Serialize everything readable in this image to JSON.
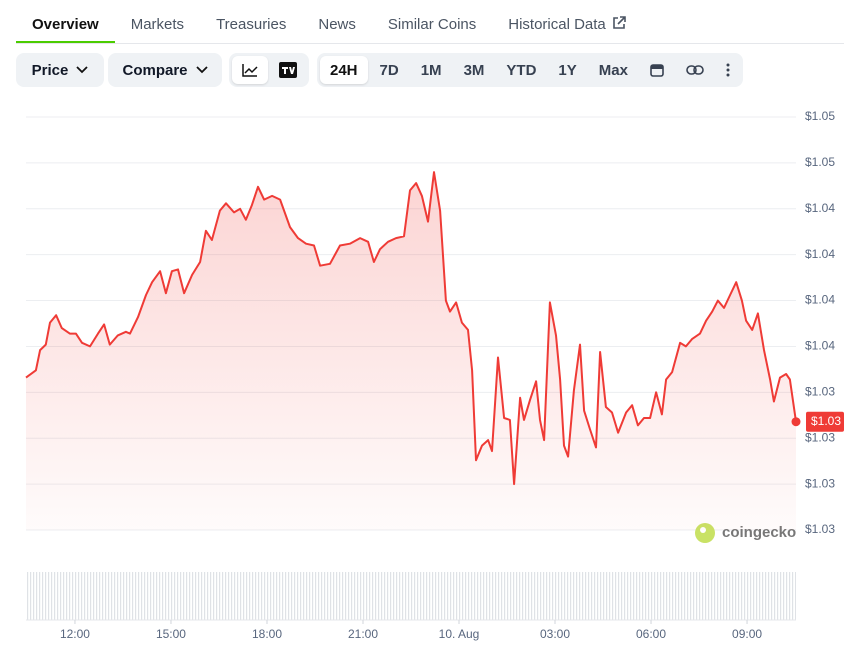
{
  "tabs": [
    "Overview",
    "Markets",
    "Treasuries",
    "News",
    "Similar Coins",
    "Historical Data"
  ],
  "toolbar": {
    "dropdowns": [
      "Price",
      "Compare"
    ],
    "ranges": [
      "24H",
      "7D",
      "1M",
      "3M",
      "YTD",
      "1Y",
      "Max"
    ]
  },
  "watermark": "coingecko",
  "chart_data": {
    "type": "line",
    "color": "#ef3b36",
    "grid": true,
    "x": [
      10.47,
      10.78,
      10.91,
      11.09,
      11.22,
      11.41,
      11.59,
      11.84,
      12.03,
      12.22,
      12.47,
      12.72,
      12.91,
      13.09,
      13.34,
      13.59,
      13.72,
      13.97,
      14.22,
      14.41,
      14.66,
      14.84,
      15.03,
      15.22,
      15.41,
      15.66,
      15.91,
      16.09,
      16.28,
      16.53,
      16.72,
      16.97,
      17.16,
      17.34,
      17.53,
      17.72,
      17.91,
      18.16,
      18.41,
      18.72,
      18.97,
      19.22,
      19.47,
      19.66,
      19.97,
      20.28,
      20.59,
      20.91,
      21.16,
      21.34,
      21.53,
      21.78,
      22.03,
      22.28,
      22.47,
      22.66,
      22.84,
      23.03,
      23.22,
      23.41,
      23.59,
      23.72,
      23.91,
      24.09,
      24.28,
      24.41,
      24.53,
      24.72,
      24.91,
      25.03,
      25.22,
      25.41,
      25.59,
      25.72,
      25.91,
      26.03,
      26.22,
      26.41,
      26.53,
      26.66,
      26.84,
      27.03,
      27.16,
      27.28,
      27.41,
      27.59,
      27.78,
      27.91,
      28.09,
      28.28,
      28.41,
      28.59,
      28.78,
      28.97,
      29.22,
      29.41,
      29.59,
      29.78,
      29.97,
      30.16,
      30.34,
      30.47,
      30.66,
      30.91,
      31.09,
      31.28,
      31.53,
      31.72,
      31.91,
      32.09,
      32.28,
      32.47,
      32.66,
      32.84,
      32.97,
      33.16,
      33.34,
      33.53,
      33.72,
      33.84,
      34.03,
      34.22,
      34.34,
      34.53
    ],
    "values": [
      1.0333,
      1.0337,
      1.0348,
      1.0351,
      1.0363,
      1.0367,
      1.036,
      1.0357,
      1.0357,
      1.0352,
      1.035,
      1.0357,
      1.0362,
      1.0351,
      1.0356,
      1.0358,
      1.0357,
      1.0366,
      1.0378,
      1.0385,
      1.0391,
      1.0379,
      1.0391,
      1.0392,
      1.0379,
      1.0389,
      1.0396,
      1.0413,
      1.0408,
      1.0424,
      1.0428,
      1.0423,
      1.0425,
      1.0419,
      1.0427,
      1.0437,
      1.043,
      1.0432,
      1.043,
      1.0415,
      1.0409,
      1.0406,
      1.0405,
      1.0394,
      1.0395,
      1.0405,
      1.0406,
      1.0409,
      1.0407,
      1.0396,
      1.0403,
      1.0407,
      1.0409,
      1.041,
      1.0435,
      1.0439,
      1.0432,
      1.0418,
      1.0445,
      1.0424,
      1.0375,
      1.0369,
      1.0374,
      1.0363,
      1.0359,
      1.0337,
      1.0288,
      1.0296,
      1.0299,
      1.0293,
      1.0344,
      1.0311,
      1.031,
      1.0275,
      1.0322,
      1.031,
      1.0321,
      1.0331,
      1.031,
      1.0299,
      1.0374,
      1.0356,
      1.0332,
      1.0296,
      1.029,
      1.0326,
      1.0351,
      1.0315,
      1.0305,
      1.0295,
      1.0347,
      1.0317,
      1.0314,
      1.0303,
      1.0314,
      1.0318,
      1.0307,
      1.0311,
      1.0311,
      1.0325,
      1.0313,
      1.0332,
      1.0336,
      1.0352,
      1.035,
      1.0354,
      1.0357,
      1.0364,
      1.0369,
      1.0375,
      1.0371,
      1.0378,
      1.0385,
      1.0375,
      1.0364,
      1.0359,
      1.0368,
      1.0348,
      1.0332,
      1.032,
      1.0333,
      1.0335,
      1.0332,
      1.0309
    ],
    "current_price_label": "$1.03",
    "xlim": [
      10.47,
      34.53
    ],
    "xticks": [
      {
        "value": 12,
        "label": "12:00"
      },
      {
        "value": 15,
        "label": "15:00"
      },
      {
        "value": 18,
        "label": "18:00"
      },
      {
        "value": 21,
        "label": "21:00"
      },
      {
        "value": 24,
        "label": "10. Aug"
      },
      {
        "value": 27,
        "label": "03:00"
      },
      {
        "value": 30,
        "label": "06:00"
      },
      {
        "value": 33,
        "label": "09:00"
      }
    ],
    "ylim": [
      1.025,
      1.0475
    ],
    "yticks": [
      {
        "value": 1.0475,
        "label": "$1.05"
      },
      {
        "value": 1.045,
        "label": "$1.05"
      },
      {
        "value": 1.0425,
        "label": "$1.04"
      },
      {
        "value": 1.04,
        "label": "$1.04"
      },
      {
        "value": 1.0375,
        "label": "$1.04"
      },
      {
        "value": 1.035,
        "label": "$1.04"
      },
      {
        "value": 1.0325,
        "label": "$1.03"
      },
      {
        "value": 1.03,
        "label": "$1.03"
      },
      {
        "value": 1.0275,
        "label": "$1.03"
      },
      {
        "value": 1.025,
        "label": "$1.03"
      }
    ]
  }
}
